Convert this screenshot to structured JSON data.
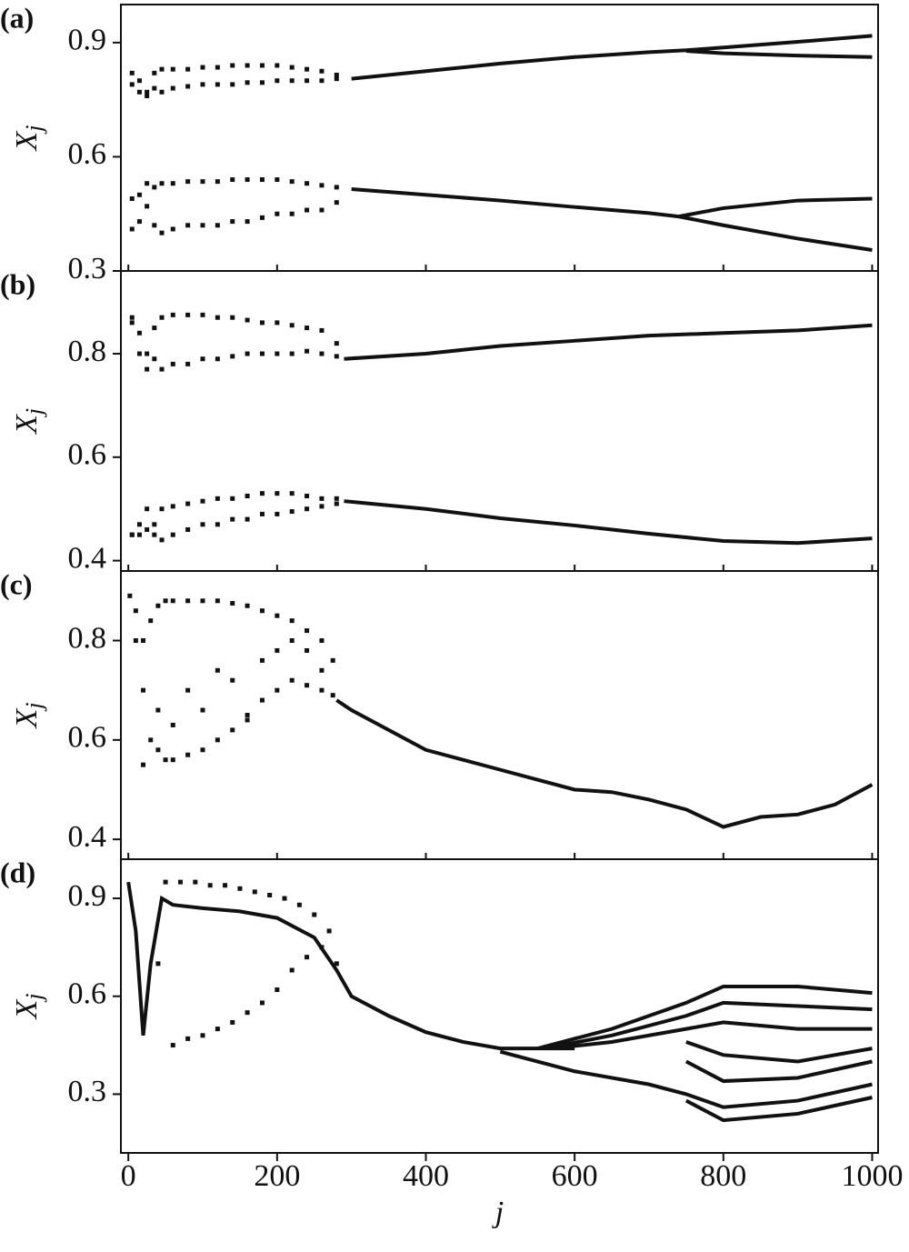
{
  "chart_data": [
    {
      "type": "scatter",
      "label": "(a)",
      "ylabel": "X",
      "ylabel_sub": "j",
      "color": "#111111",
      "xlim": [
        -10,
        1008
      ],
      "ylim": [
        0.3,
        1.0
      ],
      "yticks": [
        0.3,
        0.6,
        0.9
      ],
      "series": [
        {
          "mode": "line",
          "x": [
            300,
            400,
            500,
            600,
            700,
            750,
            800,
            900,
            1000
          ],
          "values": [
            0.805,
            0.825,
            0.845,
            0.862,
            0.875,
            0.88,
            0.887,
            0.902,
            0.918
          ]
        },
        {
          "mode": "line",
          "x": [
            750,
            800,
            900,
            1000
          ],
          "values": [
            0.878,
            0.872,
            0.866,
            0.862
          ]
        },
        {
          "mode": "line",
          "x": [
            300,
            400,
            500,
            600,
            700,
            740
          ],
          "values": [
            0.515,
            0.5,
            0.485,
            0.468,
            0.452,
            0.443
          ]
        },
        {
          "mode": "line",
          "x": [
            740,
            800,
            900,
            1000
          ],
          "values": [
            0.443,
            0.465,
            0.485,
            0.49
          ]
        },
        {
          "mode": "line",
          "x": [
            740,
            800,
            900,
            1000
          ],
          "values": [
            0.443,
            0.42,
            0.385,
            0.355
          ]
        },
        {
          "mode": "dots",
          "x": [
            5,
            15,
            25,
            35,
            45,
            60,
            80,
            100,
            120,
            140,
            160,
            180,
            200,
            220,
            240,
            260,
            280
          ],
          "values": [
            0.82,
            0.8,
            0.77,
            0.82,
            0.83,
            0.83,
            0.83,
            0.835,
            0.835,
            0.84,
            0.84,
            0.84,
            0.84,
            0.835,
            0.83,
            0.825,
            0.815
          ]
        },
        {
          "mode": "dots",
          "x": [
            5,
            15,
            25,
            35,
            45,
            60,
            80,
            100,
            120,
            140,
            160,
            180,
            200,
            220,
            240,
            260,
            280
          ],
          "values": [
            0.79,
            0.77,
            0.76,
            0.78,
            0.77,
            0.78,
            0.785,
            0.79,
            0.79,
            0.79,
            0.795,
            0.795,
            0.8,
            0.8,
            0.8,
            0.8,
            0.805
          ]
        },
        {
          "mode": "dots",
          "x": [
            5,
            15,
            25,
            35,
            45,
            60,
            80,
            100,
            120,
            140,
            160,
            180,
            200,
            220,
            240,
            260,
            280
          ],
          "values": [
            0.49,
            0.5,
            0.53,
            0.52,
            0.53,
            0.53,
            0.535,
            0.535,
            0.535,
            0.54,
            0.54,
            0.54,
            0.54,
            0.535,
            0.53,
            0.525,
            0.52
          ]
        },
        {
          "mode": "dots",
          "x": [
            5,
            15,
            25,
            35,
            45,
            60,
            80,
            100,
            120,
            140,
            160,
            180,
            200,
            220,
            240,
            260,
            280
          ],
          "values": [
            0.41,
            0.43,
            0.47,
            0.42,
            0.4,
            0.41,
            0.42,
            0.42,
            0.42,
            0.43,
            0.43,
            0.44,
            0.45,
            0.45,
            0.46,
            0.46,
            0.48
          ]
        }
      ]
    },
    {
      "type": "scatter",
      "label": "(b)",
      "ylabel": "X",
      "ylabel_sub": "j",
      "color": "#111111",
      "xlim": [
        -10,
        1008
      ],
      "ylim": [
        0.38,
        0.96
      ],
      "yticks": [
        0.4,
        0.6,
        0.8
      ],
      "series": [
        {
          "mode": "line",
          "x": [
            290,
            400,
            500,
            600,
            700,
            800,
            900,
            1000
          ],
          "values": [
            0.79,
            0.8,
            0.815,
            0.825,
            0.835,
            0.84,
            0.845,
            0.855
          ]
        },
        {
          "mode": "line",
          "x": [
            290,
            400,
            500,
            600,
            700,
            800,
            900,
            1000
          ],
          "values": [
            0.515,
            0.5,
            0.482,
            0.468,
            0.452,
            0.438,
            0.434,
            0.443
          ]
        },
        {
          "mode": "dots",
          "x": [
            5,
            15,
            25,
            35,
            45,
            60,
            80,
            100,
            120,
            140,
            160,
            180,
            200,
            220,
            240,
            260,
            280
          ],
          "values": [
            0.87,
            0.84,
            0.8,
            0.85,
            0.87,
            0.875,
            0.875,
            0.875,
            0.87,
            0.87,
            0.865,
            0.86,
            0.86,
            0.855,
            0.85,
            0.845,
            0.82
          ]
        },
        {
          "mode": "dots",
          "x": [
            5,
            15,
            25,
            35,
            45,
            60,
            80,
            100,
            120,
            140,
            160,
            180,
            200,
            220,
            240,
            260,
            280
          ],
          "values": [
            0.86,
            0.8,
            0.77,
            0.79,
            0.77,
            0.78,
            0.78,
            0.79,
            0.79,
            0.795,
            0.8,
            0.8,
            0.8,
            0.8,
            0.805,
            0.8,
            0.795
          ]
        },
        {
          "mode": "dots",
          "x": [
            5,
            15,
            25,
            35,
            45,
            60,
            80,
            100,
            120,
            140,
            160,
            180,
            200,
            220,
            240,
            260,
            280
          ],
          "values": [
            0.45,
            0.47,
            0.5,
            0.47,
            0.5,
            0.505,
            0.51,
            0.515,
            0.52,
            0.52,
            0.525,
            0.53,
            0.53,
            0.53,
            0.525,
            0.52,
            0.52
          ]
        },
        {
          "mode": "dots",
          "x": [
            5,
            15,
            25,
            35,
            45,
            60,
            80,
            100,
            120,
            140,
            160,
            180,
            200,
            220,
            240,
            260,
            280
          ],
          "values": [
            0.45,
            0.45,
            0.46,
            0.45,
            0.44,
            0.45,
            0.46,
            0.47,
            0.47,
            0.48,
            0.48,
            0.49,
            0.49,
            0.495,
            0.5,
            0.505,
            0.51
          ]
        }
      ]
    },
    {
      "type": "scatter",
      "label": "(c)",
      "ylabel": "X",
      "ylabel_sub": "j",
      "color": "#111111",
      "xlim": [
        -10,
        1008
      ],
      "ylim": [
        0.36,
        0.94
      ],
      "yticks": [
        0.4,
        0.6,
        0.8
      ],
      "series": [
        {
          "mode": "line",
          "x": [
            280,
            300,
            350,
            400,
            450,
            500,
            550,
            600,
            650,
            700,
            750,
            800,
            850,
            900,
            950,
            1000
          ],
          "values": [
            0.68,
            0.66,
            0.62,
            0.58,
            0.56,
            0.54,
            0.52,
            0.5,
            0.495,
            0.48,
            0.46,
            0.425,
            0.445,
            0.45,
            0.47,
            0.51
          ]
        },
        {
          "mode": "dots",
          "x": [
            2,
            10,
            20,
            30,
            40,
            50,
            60,
            80,
            100,
            120,
            140,
            160,
            180,
            200,
            220,
            240,
            260,
            275
          ],
          "values": [
            0.89,
            0.86,
            0.8,
            0.84,
            0.87,
            0.88,
            0.88,
            0.88,
            0.88,
            0.88,
            0.875,
            0.87,
            0.86,
            0.85,
            0.84,
            0.82,
            0.8,
            0.76
          ]
        },
        {
          "mode": "dots",
          "x": [
            10,
            20,
            30,
            40,
            50,
            60,
            80,
            100,
            120,
            140,
            160,
            180,
            200,
            220,
            240,
            260,
            275
          ],
          "values": [
            0.8,
            0.55,
            0.6,
            0.58,
            0.56,
            0.56,
            0.57,
            0.58,
            0.6,
            0.62,
            0.65,
            0.68,
            0.7,
            0.72,
            0.71,
            0.7,
            0.69
          ]
        },
        {
          "mode": "dots",
          "x": [
            20,
            40,
            60,
            80,
            100,
            120,
            140,
            160,
            180,
            200,
            220,
            240,
            260
          ],
          "values": [
            0.7,
            0.66,
            0.63,
            0.7,
            0.66,
            0.74,
            0.72,
            0.64,
            0.76,
            0.78,
            0.8,
            0.78,
            0.74
          ]
        }
      ]
    },
    {
      "type": "scatter",
      "label": "(d)",
      "ylabel": "X",
      "ylabel_sub": "j",
      "xlabel": "j",
      "color": "#111111",
      "xlim": [
        -10,
        1008
      ],
      "ylim": [
        0.12,
        1.02
      ],
      "yticks": [
        0.3,
        0.6,
        0.9
      ],
      "xticks": [
        0,
        200,
        400,
        600,
        800,
        1000
      ],
      "series": [
        {
          "mode": "line",
          "x": [
            0,
            10,
            20,
            30,
            45,
            60,
            100,
            150,
            200,
            250,
            280,
            300,
            350,
            400,
            450,
            500,
            550,
            600
          ],
          "values": [
            0.95,
            0.8,
            0.48,
            0.7,
            0.9,
            0.88,
            0.87,
            0.86,
            0.84,
            0.78,
            0.68,
            0.6,
            0.54,
            0.49,
            0.46,
            0.44,
            0.44,
            0.44
          ]
        },
        {
          "mode": "line",
          "x": [
            550,
            650,
            750,
            800,
            900,
            1000
          ],
          "values": [
            0.44,
            0.5,
            0.58,
            0.63,
            0.63,
            0.61
          ]
        },
        {
          "mode": "line",
          "x": [
            560,
            650,
            750,
            800,
            900,
            1000
          ],
          "values": [
            0.44,
            0.48,
            0.54,
            0.58,
            0.57,
            0.56
          ]
        },
        {
          "mode": "line",
          "x": [
            570,
            650,
            750,
            800,
            900,
            1000
          ],
          "values": [
            0.44,
            0.46,
            0.5,
            0.52,
            0.5,
            0.5
          ]
        },
        {
          "mode": "line",
          "x": [
            750,
            800,
            900,
            1000
          ],
          "values": [
            0.46,
            0.42,
            0.4,
            0.44
          ]
        },
        {
          "mode": "line",
          "x": [
            750,
            800,
            900,
            1000
          ],
          "values": [
            0.4,
            0.34,
            0.35,
            0.4
          ]
        },
        {
          "mode": "line",
          "x": [
            500,
            600,
            700,
            750,
            800,
            900,
            1000
          ],
          "values": [
            0.43,
            0.37,
            0.33,
            0.3,
            0.26,
            0.28,
            0.33
          ]
        },
        {
          "mode": "line",
          "x": [
            750,
            800,
            900,
            1000
          ],
          "values": [
            0.28,
            0.22,
            0.24,
            0.29
          ]
        },
        {
          "mode": "dots",
          "x": [
            40,
            60,
            80,
            100,
            120,
            140,
            160,
            180,
            200,
            220,
            240,
            260,
            280
          ],
          "values": [
            0.7,
            0.45,
            0.47,
            0.48,
            0.5,
            0.52,
            0.55,
            0.58,
            0.62,
            0.68,
            0.72,
            0.75,
            0.7
          ]
        },
        {
          "mode": "dots",
          "x": [
            50,
            70,
            90,
            110,
            130,
            150,
            170,
            190,
            210,
            230,
            250,
            270
          ],
          "values": [
            0.95,
            0.95,
            0.95,
            0.94,
            0.94,
            0.93,
            0.92,
            0.91,
            0.9,
            0.88,
            0.85,
            0.8
          ]
        }
      ]
    }
  ]
}
